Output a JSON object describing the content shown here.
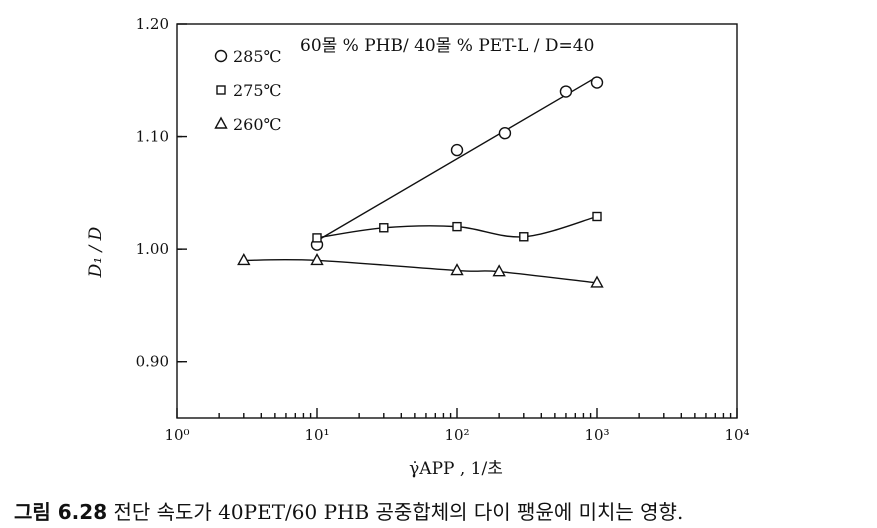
{
  "chart_data": {
    "type": "scatter",
    "title": "60몰 % PHB/ 40몰 % PET-L / D=40",
    "xlabel": "γ̇APP , 1/초",
    "ylabel": "D₁ / D",
    "xscale": "log",
    "xlim": [
      1,
      10000
    ],
    "ylim": [
      0.85,
      1.2
    ],
    "x_tick_labels": [
      "10⁰",
      "10¹",
      "10²",
      "10³",
      "10⁴"
    ],
    "y_tick_labels": [
      "0.90",
      "1.00",
      "1.10",
      "1.20"
    ],
    "y_ticks": [
      0.9,
      1.0,
      1.1,
      1.2
    ],
    "grid": false,
    "legend_position": "top-left",
    "series": [
      {
        "name": "285℃",
        "marker": "circle",
        "x": [
          10,
          100,
          220,
          600,
          1000
        ],
        "y": [
          1.004,
          1.088,
          1.103,
          1.14,
          1.148
        ]
      },
      {
        "name": "275℃",
        "marker": "square",
        "x": [
          10,
          30,
          100,
          300,
          1000
        ],
        "y": [
          1.01,
          1.019,
          1.02,
          1.011,
          1.029
        ]
      },
      {
        "name": "260℃",
        "marker": "triangle",
        "x": [
          3,
          10,
          100,
          200,
          1000
        ],
        "y": [
          0.99,
          0.99,
          0.981,
          0.98,
          0.97
        ]
      }
    ]
  },
  "caption": {
    "figure_label": "그림 6.28",
    "text": "전단 속도가 40PET/60 PHB 공중합체의 다이 팽윤에 미치는 영향."
  }
}
